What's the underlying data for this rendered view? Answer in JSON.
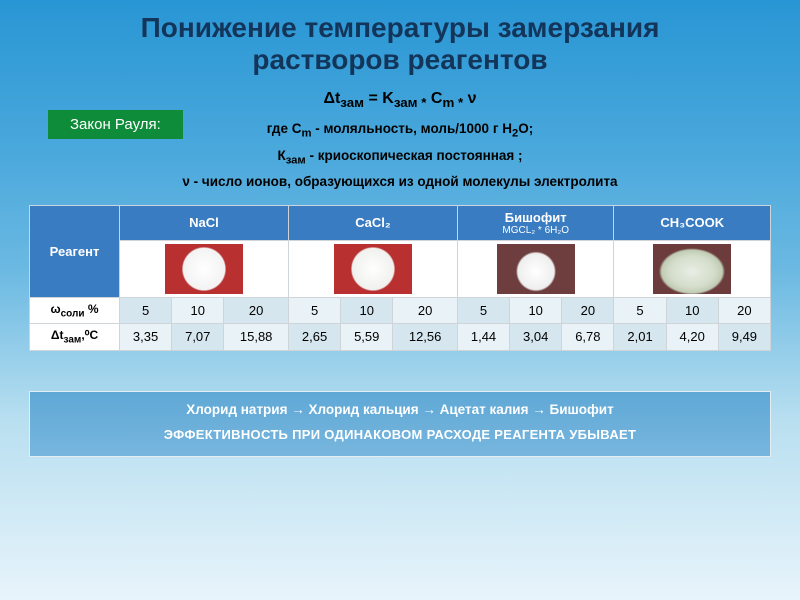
{
  "title": "Понижение температуры замерзания\nрастворов реагентов",
  "raul": "Закон  Рауля:",
  "formula": {
    "main": "Δt<sub>зам</sub>  = K<sub>зам *</sub> C<sub>m *</sub> ν",
    "l1": "где C<sub>m</sub> - моляльность, моль/1000 г  H<sub>2</sub>O;",
    "l2": "К<sub>зам</sub> - криоскопическая постоянная ;",
    "l3": "ν - число ионов, образующихся из одной молекулы электролита"
  },
  "table": {
    "reagent_label": "Реагент",
    "headers": [
      {
        "name": "NaCl",
        "sub": ""
      },
      {
        "name": "CaCl₂",
        "sub": ""
      },
      {
        "name": "Бишофит",
        "sub": "MGCL₂ * 6H₂O"
      },
      {
        "name": "CH₃COOK",
        "sub": ""
      }
    ],
    "row_omega": "ω<sub>соли</sub> %",
    "row_dt": "Δt<sub>зам</sub>,⁰С",
    "omega": [
      "5",
      "10",
      "20",
      "5",
      "10",
      "20",
      "5",
      "10",
      "20",
      "5",
      "10",
      "20"
    ],
    "dt": [
      "3,35",
      "7,07",
      "15,88",
      "2,65",
      "5,59",
      "12,56",
      "1,44",
      "3,04",
      "6,78",
      "2,01",
      "4,20",
      "9,49"
    ]
  },
  "bottom": {
    "chain": "Хлорид натрия → Хлорид кальция → Ацетат калия →    Бишофит",
    "eff": "ЭФФЕКТИВНОСТЬ ПРИ ОДИНАКОВОМ РАСХОДЕ РЕАГЕНТА УБЫВАЕТ"
  },
  "colors": {
    "bg_top": "#2896d4",
    "bg_bottom": "#e8f4fb",
    "title_color": "#13355a",
    "badge_bg": "#0e8c3a",
    "header_bg": "#3a7cc2",
    "band1": "#d5e6ee",
    "band2": "#e9f2f6"
  }
}
